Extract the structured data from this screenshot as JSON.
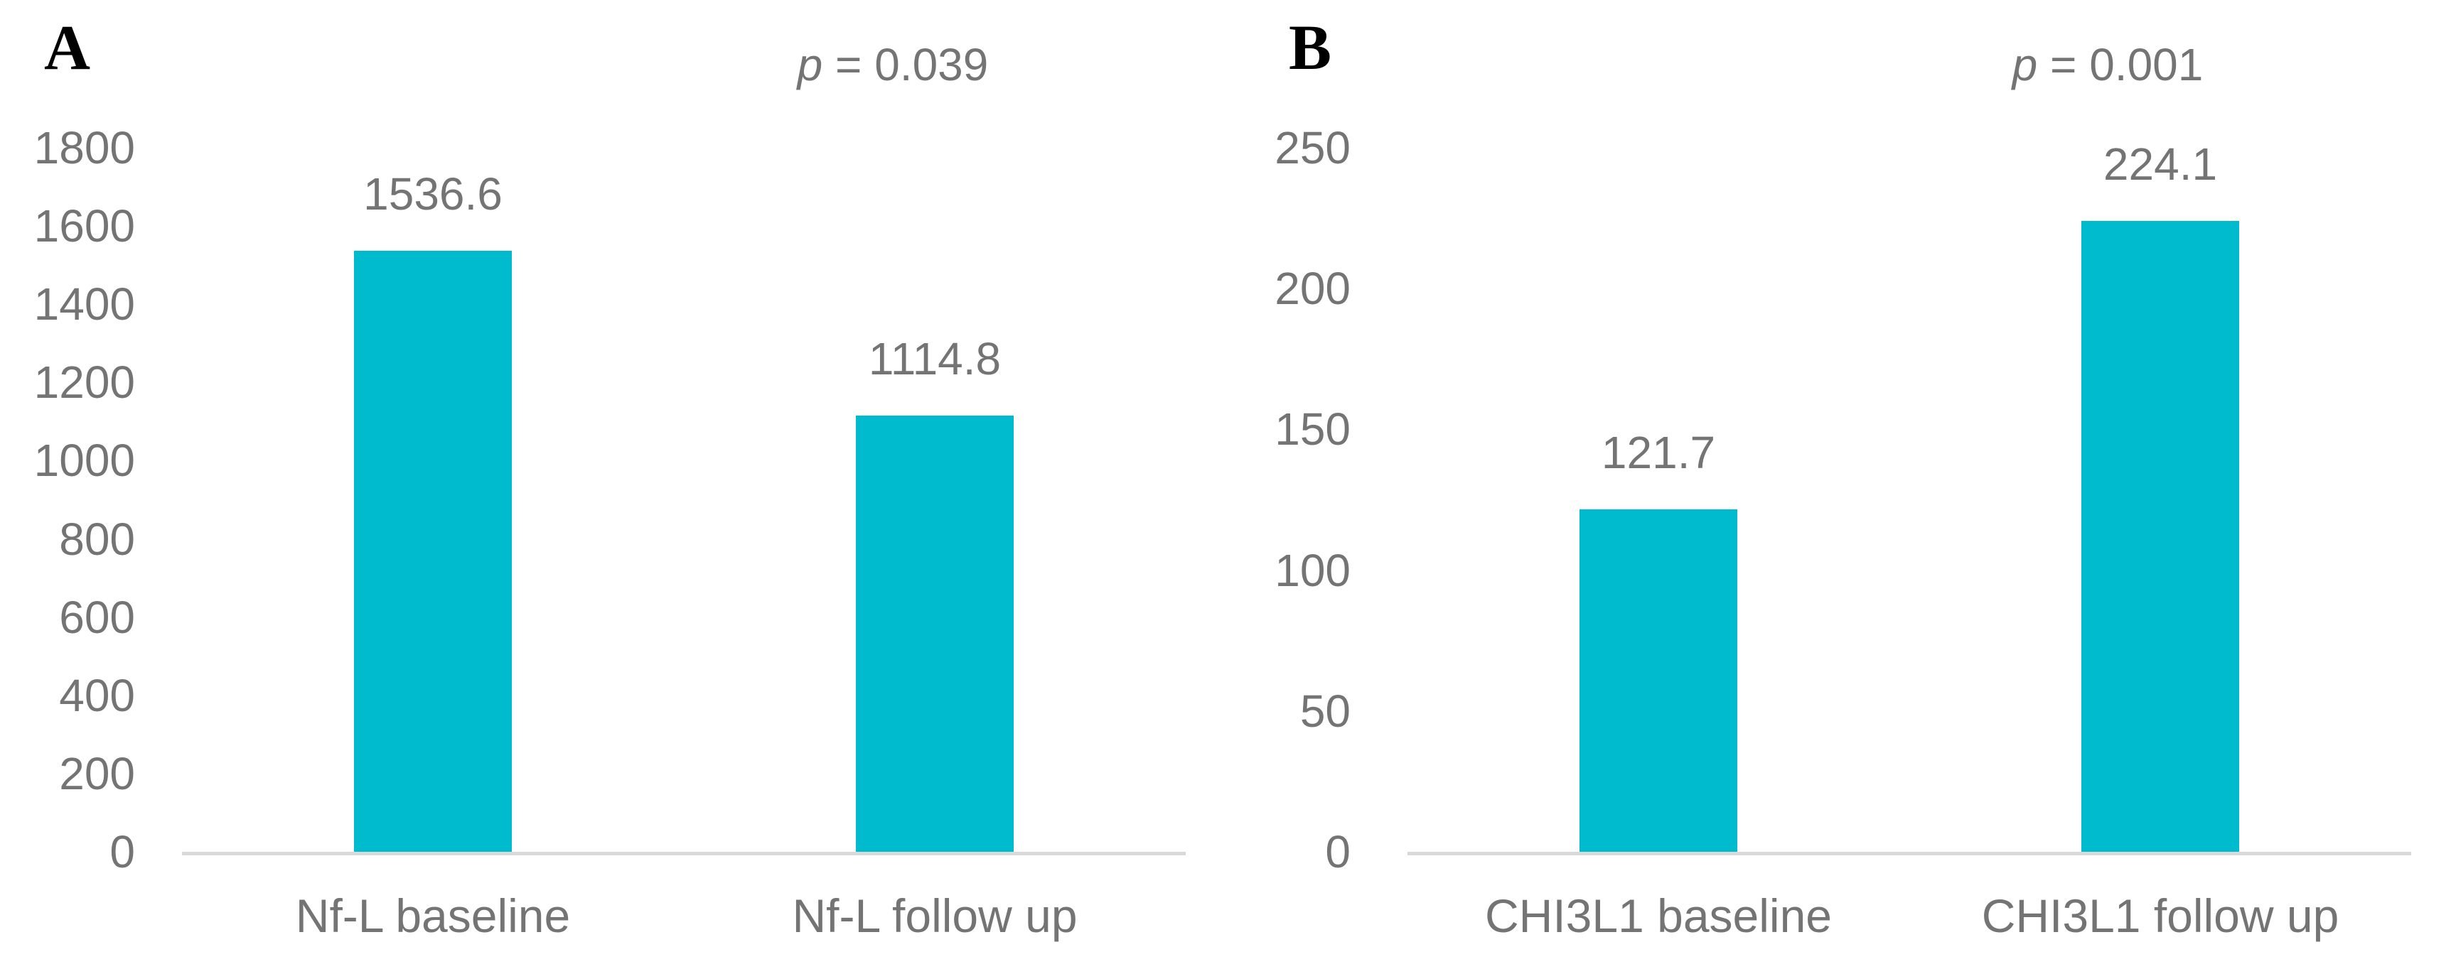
{
  "colors": {
    "bar_fill": "#00bacd",
    "text_gray": "#747474",
    "axis_line": "#d9d9d9",
    "panel_letter": "#000000",
    "background": "#ffffff"
  },
  "chart_data": [
    {
      "type": "bar",
      "panel_label": "A",
      "p_value": "p = 0.039",
      "p_italic": "p",
      "p_rest": " = 0.039",
      "categories": [
        "Nf-L baseline",
        "Nf-L follow up"
      ],
      "values": [
        1536.6,
        1114.8
      ],
      "data_labels": [
        "1536.6",
        "1114.8"
      ],
      "title": "",
      "xlabel": "",
      "ylabel": "",
      "ylim": [
        0,
        1800
      ],
      "ytick_interval": 200,
      "ytick_labels": [
        "0",
        "200",
        "400",
        "600",
        "800",
        "1000",
        "1200",
        "1400",
        "1600",
        "1800"
      ],
      "grid": false,
      "legend": "none",
      "bar_color": "#00bacd"
    },
    {
      "type": "bar",
      "panel_label": "B",
      "p_value": "p = 0.001",
      "p_italic": "p",
      "p_rest": " = 0.001",
      "categories": [
        "CHI3L1 baseline",
        "CHI3L1 follow up"
      ],
      "values": [
        121.7,
        224.1
      ],
      "data_labels": [
        "121.7",
        "224.1"
      ],
      "title": "",
      "xlabel": "",
      "ylabel": "",
      "ylim": [
        0,
        250
      ],
      "ytick_interval": 50,
      "ytick_labels": [
        "0",
        "50",
        "100",
        "150",
        "200",
        "250"
      ],
      "grid": false,
      "legend": "none",
      "bar_color": "#00bacd"
    }
  ]
}
